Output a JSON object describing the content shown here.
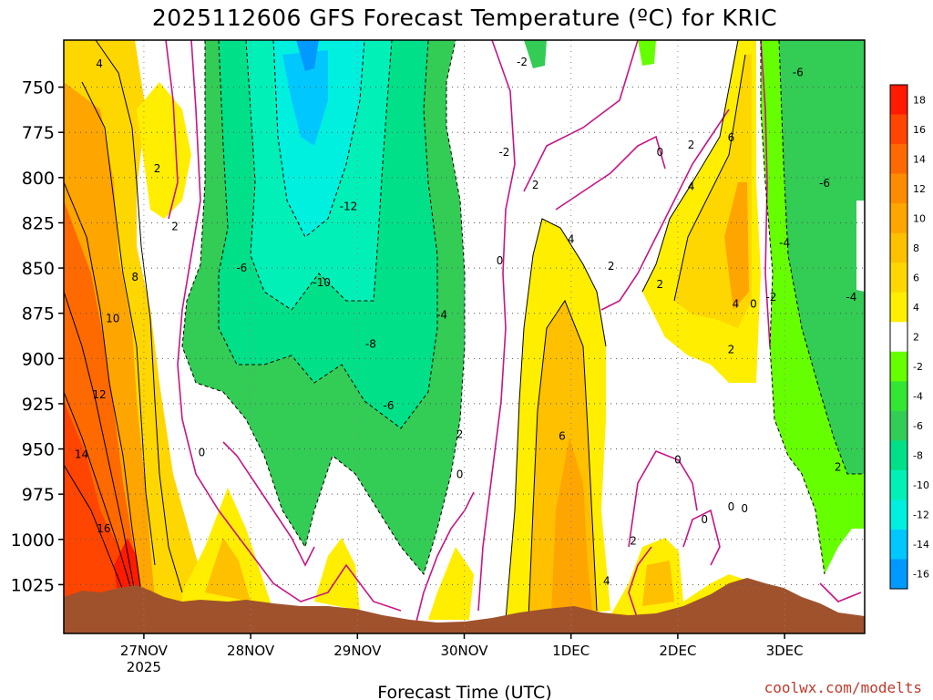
{
  "chart_data": {
    "type": "heatmap",
    "title": "2025112606 GFS Forecast Temperature (ºC) for KRIC",
    "xlabel": "Forecast Time (UTC)",
    "ylabel": "",
    "x_ticks": [
      {
        "hour": 18,
        "label": "27NOV",
        "sublabel": "2025"
      },
      {
        "hour": 42,
        "label": "28NOV",
        "sublabel": ""
      },
      {
        "hour": 66,
        "label": "29NOV",
        "sublabel": ""
      },
      {
        "hour": 90,
        "label": "30NOV",
        "sublabel": ""
      },
      {
        "hour": 114,
        "label": "1DEC",
        "sublabel": ""
      },
      {
        "hour": 138,
        "label": "2DEC",
        "sublabel": ""
      },
      {
        "hour": 162,
        "label": "3DEC",
        "sublabel": ""
      }
    ],
    "xlim_hours": [
      0,
      180
    ],
    "y_ticks": [
      750,
      775,
      800,
      825,
      850,
      875,
      900,
      925,
      950,
      975,
      1000,
      1025
    ],
    "ylim_hpa": [
      724,
      1052
    ],
    "y_inverted": true,
    "grid": true,
    "colorbar_levels": [
      18,
      16,
      14,
      12,
      10,
      8,
      6,
      4,
      2,
      -2,
      -4,
      -6,
      -8,
      -10,
      -12,
      -14,
      -16
    ],
    "colorbar_colors": [
      "#ff1a00",
      "#ff4500",
      "#ff6a00",
      "#ff8c00",
      "#ffa500",
      "#ffc000",
      "#ffd700",
      "#ffee00",
      "#ffffff",
      "#66ff00",
      "#33e633",
      "#33cc55",
      "#00e088",
      "#00f0b8",
      "#00f0e0",
      "#00c8ff",
      "#0099ff"
    ],
    "contour_labels": [
      {
        "hour": 8,
        "hpa": 739,
        "label": "4"
      },
      {
        "hour": 21,
        "hpa": 797,
        "label": "2"
      },
      {
        "hour": 25,
        "hpa": 829,
        "label": "2"
      },
      {
        "hour": 16,
        "hpa": 857,
        "label": "8"
      },
      {
        "hour": 11,
        "hpa": 880,
        "label": "10"
      },
      {
        "hour": 8,
        "hpa": 922,
        "label": "12"
      },
      {
        "hour": 4,
        "hpa": 955,
        "label": "14"
      },
      {
        "hour": 9,
        "hpa": 996,
        "label": "16"
      },
      {
        "hour": 31,
        "hpa": 954,
        "label": "0"
      },
      {
        "hour": 40,
        "hpa": 852,
        "label": "-6"
      },
      {
        "hour": 64,
        "hpa": 818,
        "label": "-12"
      },
      {
        "hour": 58,
        "hpa": 860,
        "label": "-10"
      },
      {
        "hour": 69,
        "hpa": 894,
        "label": "-8"
      },
      {
        "hour": 73,
        "hpa": 928,
        "label": "-6"
      },
      {
        "hour": 85,
        "hpa": 878,
        "label": "-4"
      },
      {
        "hour": 89,
        "hpa": 944,
        "label": "2"
      },
      {
        "hour": 89,
        "hpa": 966,
        "label": "0"
      },
      {
        "hour": 103,
        "hpa": 738,
        "label": "-2"
      },
      {
        "hour": 99,
        "hpa": 788,
        "label": "-2"
      },
      {
        "hour": 106,
        "hpa": 806,
        "label": "2"
      },
      {
        "hour": 114,
        "hpa": 836,
        "label": "4"
      },
      {
        "hour": 123,
        "hpa": 851,
        "label": "2"
      },
      {
        "hour": 98,
        "hpa": 848,
        "label": "0"
      },
      {
        "hour": 112,
        "hpa": 945,
        "label": "6"
      },
      {
        "hour": 122,
        "hpa": 1025,
        "label": "4"
      },
      {
        "hour": 128,
        "hpa": 1003,
        "label": "2"
      },
      {
        "hour": 134,
        "hpa": 788,
        "label": "0"
      },
      {
        "hour": 141,
        "hpa": 784,
        "label": "2"
      },
      {
        "hour": 141,
        "hpa": 807,
        "label": "4"
      },
      {
        "hour": 150,
        "hpa": 780,
        "label": "6"
      },
      {
        "hour": 134,
        "hpa": 861,
        "label": "2"
      },
      {
        "hour": 151,
        "hpa": 872,
        "label": "4"
      },
      {
        "hour": 150,
        "hpa": 897,
        "label": "2"
      },
      {
        "hour": 155,
        "hpa": 872,
        "label": "0"
      },
      {
        "hour": 159,
        "hpa": 868,
        "label": "-2"
      },
      {
        "hour": 162,
        "hpa": 838,
        "label": "-4"
      },
      {
        "hour": 171,
        "hpa": 805,
        "label": "-6"
      },
      {
        "hour": 165,
        "hpa": 744,
        "label": "-6"
      },
      {
        "hour": 177,
        "hpa": 868,
        "label": "-4"
      },
      {
        "hour": 174,
        "hpa": 962,
        "label": "2"
      },
      {
        "hour": 138,
        "hpa": 958,
        "label": "0"
      },
      {
        "hour": 144,
        "hpa": 991,
        "label": "0"
      },
      {
        "hour": 150,
        "hpa": 984,
        "label": "0"
      },
      {
        "hour": 153,
        "hpa": 985,
        "label": "0"
      }
    ],
    "terrain_color": "#a0522d"
  },
  "credit": "coolwx.com/modelts"
}
